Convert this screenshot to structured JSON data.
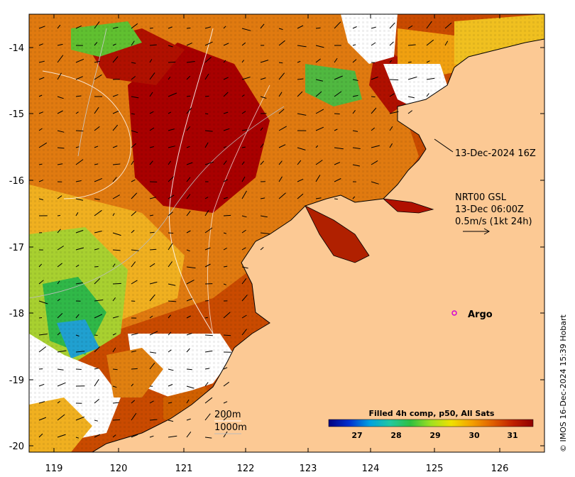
{
  "map": {
    "x_ticks": [
      "119",
      "120",
      "121",
      "122",
      "123",
      "124",
      "125",
      "126"
    ],
    "y_ticks": [
      "-14",
      "-15",
      "-16",
      "-17",
      "-18",
      "-19",
      "-20"
    ]
  },
  "annotations": {
    "timestamp_label": "13-Dec-2024 16Z",
    "current_source": "NRT00 GSL",
    "current_time": "13-Dec 06:00Z",
    "current_scale": "0.5m/s (1kt 24h)",
    "argo_label": "Argo",
    "contour_200": "200m",
    "contour_1000": "1000m",
    "side_credit": "© IMOS 16-Dec-2024 15:39 Hobart"
  },
  "colorbar": {
    "title": "Filled 4h comp, p50, All Sats",
    "ticks": [
      "27",
      "28",
      "29",
      "30",
      "31"
    ]
  },
  "colors": {
    "land": "#fcc994",
    "nodata": "#ffffff",
    "argo": "#d400d4"
  }
}
